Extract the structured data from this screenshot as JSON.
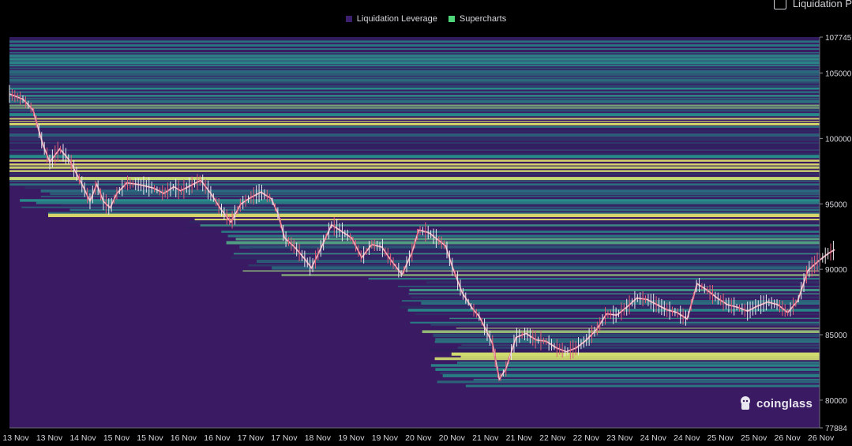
{
  "legend": {
    "items": [
      {
        "label": "Liquidation Leverage",
        "color": "#3b1f6e"
      },
      {
        "label": "Supercharts",
        "color": "#4fd67a"
      }
    ]
  },
  "corner_toggle": {
    "label": "Liquidation P"
  },
  "watermark": {
    "label": "coinglass"
  },
  "colors": {
    "background": "#3a1a62",
    "price_up": "#e9e9ef",
    "price_down": "#e2607a",
    "heat_low": "#2f1d5e",
    "heat_mid": "#2b8c8a",
    "heat_high": "#f5f26a"
  },
  "chart_data": {
    "type": "heatmap",
    "x_ticks": [
      "13 Nov",
      "13 Nov",
      "14 Nov",
      "15 Nov",
      "15 Nov",
      "16 Nov",
      "16 Nov",
      "17 Nov",
      "17 Nov",
      "18 Nov",
      "19 Nov",
      "19 Nov",
      "20 Nov",
      "20 Nov",
      "21 Nov",
      "21 Nov",
      "22 Nov",
      "22 Nov",
      "23 Nov",
      "24 Nov",
      "24 Nov",
      "25 Nov",
      "25 Nov",
      "26 Nov",
      "26 Nov"
    ],
    "y_ticks": [
      "107745",
      "105000",
      "100000",
      "95000",
      "90000",
      "85000",
      "80000",
      "77884"
    ],
    "ylim": [
      77884,
      107745
    ],
    "price_series": {
      "name": "Supercharts",
      "points": [
        [
          0,
          103400
        ],
        [
          0.4,
          103000
        ],
        [
          0.7,
          102200
        ],
        [
          1.0,
          99500
        ],
        [
          1.2,
          98200
        ],
        [
          1.5,
          99200
        ],
        [
          1.8,
          98300
        ],
        [
          2.0,
          97300
        ],
        [
          2.2,
          96300
        ],
        [
          2.4,
          95200
        ],
        [
          2.6,
          96500
        ],
        [
          2.8,
          95200
        ],
        [
          3.0,
          94700
        ],
        [
          3.2,
          95800
        ],
        [
          3.5,
          96600
        ],
        [
          3.8,
          96500
        ],
        [
          4.0,
          96400
        ],
        [
          4.3,
          96200
        ],
        [
          4.6,
          95800
        ],
        [
          4.9,
          96300
        ],
        [
          5.1,
          96000
        ],
        [
          5.4,
          96400
        ],
        [
          5.7,
          96800
        ],
        [
          6.0,
          95800
        ],
        [
          6.3,
          94600
        ],
        [
          6.6,
          93600
        ],
        [
          6.9,
          95000
        ],
        [
          7.2,
          95500
        ],
        [
          7.5,
          95900
        ],
        [
          7.8,
          95400
        ],
        [
          8.0,
          94300
        ],
        [
          8.2,
          92400
        ],
        [
          8.5,
          91700
        ],
        [
          8.8,
          90800
        ],
        [
          9.0,
          90100
        ],
        [
          9.3,
          91700
        ],
        [
          9.6,
          93400
        ],
        [
          9.9,
          92900
        ],
        [
          10.2,
          92400
        ],
        [
          10.5,
          90900
        ],
        [
          10.8,
          91900
        ],
        [
          11.1,
          91700
        ],
        [
          11.4,
          90600
        ],
        [
          11.7,
          89600
        ],
        [
          12.0,
          91300
        ],
        [
          12.2,
          93000
        ],
        [
          12.5,
          92800
        ],
        [
          12.8,
          92200
        ],
        [
          13.0,
          91800
        ],
        [
          13.2,
          90200
        ],
        [
          13.5,
          88200
        ],
        [
          13.8,
          87000
        ],
        [
          14.0,
          86400
        ],
        [
          14.2,
          85400
        ],
        [
          14.4,
          84300
        ],
        [
          14.6,
          81600
        ],
        [
          14.8,
          82400
        ],
        [
          15.1,
          84800
        ],
        [
          15.4,
          85100
        ],
        [
          15.7,
          84600
        ],
        [
          16.0,
          84500
        ],
        [
          16.3,
          84000
        ],
        [
          16.6,
          83700
        ],
        [
          16.9,
          84000
        ],
        [
          17.2,
          84600
        ],
        [
          17.5,
          85400
        ],
        [
          17.8,
          86600
        ],
        [
          18.1,
          86500
        ],
        [
          18.4,
          87100
        ],
        [
          18.7,
          87800
        ],
        [
          19.0,
          87700
        ],
        [
          19.3,
          87300
        ],
        [
          19.6,
          86900
        ],
        [
          19.9,
          86700
        ],
        [
          20.2,
          86200
        ],
        [
          20.5,
          88900
        ],
        [
          20.8,
          88400
        ],
        [
          21.1,
          87800
        ],
        [
          21.4,
          87300
        ],
        [
          21.7,
          87100
        ],
        [
          22.0,
          86800
        ],
        [
          22.3,
          87200
        ],
        [
          22.6,
          87500
        ],
        [
          22.9,
          87300
        ],
        [
          23.2,
          86700
        ],
        [
          23.5,
          87600
        ],
        [
          23.8,
          89900
        ],
        [
          24.1,
          90600
        ],
        [
          24.4,
          91200
        ],
        [
          24.6,
          91500
        ]
      ]
    }
  }
}
